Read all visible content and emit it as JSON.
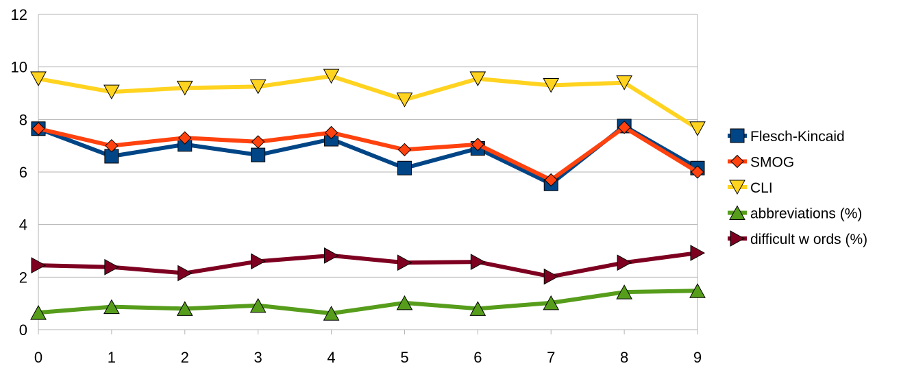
{
  "chart_data": {
    "type": "line",
    "x": [
      0,
      1,
      2,
      3,
      4,
      5,
      6,
      7,
      8,
      9
    ],
    "xlim": [
      0,
      9
    ],
    "ylim": [
      0,
      12
    ],
    "yticks": [
      0,
      2,
      4,
      6,
      8,
      10,
      12
    ],
    "xticks": [
      0,
      1,
      2,
      3,
      4,
      5,
      6,
      7,
      8,
      9
    ],
    "grid": "horizontal",
    "legend_position": "right",
    "series": [
      {
        "name": "Flesch-Kincaid",
        "color": "#004586",
        "marker": "square",
        "values": [
          7.65,
          6.6,
          7.05,
          6.65,
          7.25,
          6.15,
          6.9,
          5.55,
          7.75,
          6.15
        ]
      },
      {
        "name": "SMOG",
        "color": "#ff420e",
        "marker": "diamond",
        "values": [
          7.65,
          7.0,
          7.3,
          7.15,
          7.5,
          6.85,
          7.05,
          5.7,
          7.7,
          6.0
        ]
      },
      {
        "name": "CLI",
        "color": "#ffd320",
        "marker": "triangle-down",
        "values": [
          9.55,
          9.05,
          9.2,
          9.25,
          9.65,
          8.75,
          9.55,
          9.3,
          9.4,
          7.65
        ]
      },
      {
        "name": "abbreviations (%)",
        "color": "#579d1c",
        "marker": "triangle-up",
        "values": [
          0.65,
          0.87,
          0.8,
          0.92,
          0.62,
          1.02,
          0.8,
          1.02,
          1.43,
          1.48
        ]
      },
      {
        "name": "difficult w ords (%)",
        "color": "#7e0021",
        "marker": "triangle-right",
        "values": [
          2.45,
          2.38,
          2.15,
          2.6,
          2.82,
          2.55,
          2.58,
          2.02,
          2.55,
          2.92
        ]
      }
    ]
  }
}
